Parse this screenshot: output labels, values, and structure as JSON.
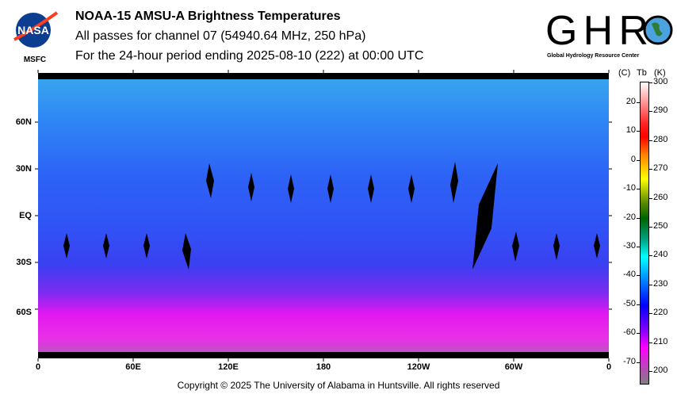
{
  "header": {
    "title": "NOAA-15 AMSU-A Brightness Temperatures",
    "subtitle": "All passes for channel 07 (54940.64 MHz, 250 hPa)",
    "period": "For the 24-hour period ending 2025-08-10 (222) at 00:00 UTC"
  },
  "logos": {
    "nasa": "NASA",
    "nasa_sub": "MSFC",
    "ghrc": "GHRC",
    "ghrc_sub": "Global Hydrology Resource Center"
  },
  "map": {
    "lat_labels": [
      "60N",
      "30N",
      "EQ",
      "30S",
      "60S"
    ],
    "lon_labels": [
      "0",
      "60E",
      "120E",
      "180",
      "120W",
      "60W",
      "0"
    ]
  },
  "colorbar": {
    "header_c": "(C)",
    "header_tb": "Tb",
    "header_k": "(K)",
    "kelvin_ticks": [
      "300",
      "290",
      "280",
      "270",
      "260",
      "250",
      "240",
      "230",
      "220",
      "210",
      "200"
    ],
    "celsius_ticks": [
      "20",
      "10",
      "0",
      "-10",
      "-20",
      "-30",
      "-40",
      "-50",
      "-60",
      "-70"
    ],
    "range_k": [
      195,
      300
    ],
    "stops": [
      "#ffffff",
      "#ff0000",
      "#ff8000",
      "#ffff00",
      "#006400",
      "#00ffff",
      "#0000ff",
      "#ff00ff",
      "#808080"
    ]
  },
  "footer": {
    "copyright": "Copyright © 2025 The University of Alabama in Huntsville.  All rights reserved"
  }
}
